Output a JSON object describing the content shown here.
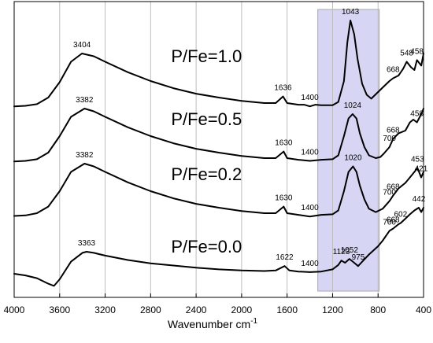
{
  "chart_data": {
    "type": "line",
    "xlabel": "Wavenumber cm",
    "xlabel_superscript": "-1",
    "xlim": [
      4000,
      400
    ],
    "x_reversed": true,
    "x_ticks": [
      4000,
      3600,
      3200,
      2800,
      2400,
      2000,
      1600,
      1200,
      800,
      400
    ],
    "y_axis_shown": false,
    "grid": "vertical",
    "highlight_band": {
      "x_from": 1330,
      "x_to": 790,
      "color": "#c8c8f0"
    },
    "series": [
      {
        "name": "P/Fe=1.0",
        "color": "#000000",
        "offset": 3,
        "points": [
          [
            4000,
            0.04
          ],
          [
            3900,
            0.05
          ],
          [
            3800,
            0.08
          ],
          [
            3700,
            0.2
          ],
          [
            3600,
            0.48
          ],
          [
            3500,
            0.85
          ],
          [
            3404,
            1.0
          ],
          [
            3300,
            0.95
          ],
          [
            3200,
            0.85
          ],
          [
            3000,
            0.66
          ],
          [
            2800,
            0.5
          ],
          [
            2600,
            0.37
          ],
          [
            2400,
            0.27
          ],
          [
            2200,
            0.2
          ],
          [
            2000,
            0.14
          ],
          [
            1800,
            0.1
          ],
          [
            1700,
            0.1
          ],
          [
            1636,
            0.22
          ],
          [
            1600,
            0.1
          ],
          [
            1500,
            0.07
          ],
          [
            1450,
            0.07
          ],
          [
            1400,
            0.04
          ],
          [
            1350,
            0.07
          ],
          [
            1300,
            0.06
          ],
          [
            1200,
            0.06
          ],
          [
            1150,
            0.12
          ],
          [
            1100,
            0.5
          ],
          [
            1070,
            1.2
          ],
          [
            1043,
            1.6
          ],
          [
            1010,
            1.35
          ],
          [
            980,
            0.9
          ],
          [
            940,
            0.45
          ],
          [
            900,
            0.25
          ],
          [
            860,
            0.18
          ],
          [
            800,
            0.3
          ],
          [
            750,
            0.4
          ],
          [
            700,
            0.5
          ],
          [
            668,
            0.55
          ],
          [
            620,
            0.6
          ],
          [
            580,
            0.72
          ],
          [
            548,
            0.85
          ],
          [
            510,
            0.75
          ],
          [
            480,
            0.7
          ],
          [
            458,
            0.88
          ],
          [
            420,
            0.78
          ],
          [
            400,
            1.0
          ]
        ]
      },
      {
        "name": "P/Fe=0.5",
        "color": "#000000",
        "offset": 2,
        "points": [
          [
            4000,
            0.04
          ],
          [
            3900,
            0.05
          ],
          [
            3800,
            0.08
          ],
          [
            3700,
            0.2
          ],
          [
            3600,
            0.5
          ],
          [
            3500,
            0.85
          ],
          [
            3382,
            1.0
          ],
          [
            3300,
            0.95
          ],
          [
            3200,
            0.85
          ],
          [
            3000,
            0.66
          ],
          [
            2800,
            0.5
          ],
          [
            2600,
            0.37
          ],
          [
            2400,
            0.27
          ],
          [
            2200,
            0.2
          ],
          [
            2000,
            0.14
          ],
          [
            1800,
            0.1
          ],
          [
            1700,
            0.1
          ],
          [
            1630,
            0.22
          ],
          [
            1600,
            0.1
          ],
          [
            1500,
            0.07
          ],
          [
            1400,
            0.05
          ],
          [
            1300,
            0.07
          ],
          [
            1200,
            0.08
          ],
          [
            1150,
            0.15
          ],
          [
            1100,
            0.5
          ],
          [
            1060,
            0.82
          ],
          [
            1024,
            0.9
          ],
          [
            990,
            0.82
          ],
          [
            960,
            0.55
          ],
          [
            920,
            0.3
          ],
          [
            880,
            0.15
          ],
          [
            820,
            0.1
          ],
          [
            780,
            0.12
          ],
          [
            750,
            0.18
          ],
          [
            700,
            0.3
          ],
          [
            668,
            0.45
          ],
          [
            620,
            0.55
          ],
          [
            560,
            0.6
          ],
          [
            520,
            0.75
          ],
          [
            490,
            0.8
          ],
          [
            458,
            0.75
          ],
          [
            420,
            0.9
          ],
          [
            400,
            1.0
          ]
        ]
      },
      {
        "name": "P/Fe=0.2",
        "color": "#000000",
        "offset": 1,
        "points": [
          [
            4000,
            0.05
          ],
          [
            3900,
            0.06
          ],
          [
            3800,
            0.1
          ],
          [
            3700,
            0.22
          ],
          [
            3600,
            0.5
          ],
          [
            3500,
            0.85
          ],
          [
            3382,
            1.0
          ],
          [
            3300,
            0.95
          ],
          [
            3200,
            0.85
          ],
          [
            3000,
            0.66
          ],
          [
            2800,
            0.5
          ],
          [
            2600,
            0.37
          ],
          [
            2400,
            0.27
          ],
          [
            2200,
            0.2
          ],
          [
            2000,
            0.14
          ],
          [
            1800,
            0.1
          ],
          [
            1700,
            0.1
          ],
          [
            1630,
            0.22
          ],
          [
            1600,
            0.1
          ],
          [
            1500,
            0.07
          ],
          [
            1400,
            0.04
          ],
          [
            1300,
            0.07
          ],
          [
            1200,
            0.08
          ],
          [
            1150,
            0.15
          ],
          [
            1100,
            0.5
          ],
          [
            1060,
            0.85
          ],
          [
            1020,
            0.95
          ],
          [
            990,
            0.85
          ],
          [
            960,
            0.6
          ],
          [
            920,
            0.35
          ],
          [
            880,
            0.18
          ],
          [
            820,
            0.12
          ],
          [
            760,
            0.18
          ],
          [
            700,
            0.32
          ],
          [
            668,
            0.42
          ],
          [
            620,
            0.55
          ],
          [
            560,
            0.65
          ],
          [
            520,
            0.75
          ],
          [
            480,
            0.85
          ],
          [
            453,
            0.92
          ],
          [
            421,
            0.75
          ],
          [
            400,
            0.85
          ]
        ]
      },
      {
        "name": "P/Fe=0.0",
        "color": "#000000",
        "offset": 0,
        "points": [
          [
            4000,
            0.0
          ],
          [
            3900,
            -0.03
          ],
          [
            3800,
            -0.08
          ],
          [
            3700,
            -0.18
          ],
          [
            3650,
            -0.22
          ],
          [
            3600,
            -0.1
          ],
          [
            3500,
            0.22
          ],
          [
            3400,
            0.38
          ],
          [
            3363,
            0.4
          ],
          [
            3300,
            0.38
          ],
          [
            3200,
            0.33
          ],
          [
            3000,
            0.25
          ],
          [
            2800,
            0.19
          ],
          [
            2600,
            0.15
          ],
          [
            2400,
            0.11
          ],
          [
            2200,
            0.08
          ],
          [
            2000,
            0.06
          ],
          [
            1800,
            0.05
          ],
          [
            1700,
            0.06
          ],
          [
            1622,
            0.14
          ],
          [
            1580,
            0.06
          ],
          [
            1500,
            0.04
          ],
          [
            1400,
            0.03
          ],
          [
            1300,
            0.04
          ],
          [
            1200,
            0.08
          ],
          [
            1150,
            0.16
          ],
          [
            1123,
            0.24
          ],
          [
            1090,
            0.2
          ],
          [
            1052,
            0.27
          ],
          [
            1010,
            0.2
          ],
          [
            975,
            0.14
          ],
          [
            930,
            0.24
          ],
          [
            880,
            0.35
          ],
          [
            800,
            0.5
          ],
          [
            760,
            0.6
          ],
          [
            700,
            0.78
          ],
          [
            668,
            0.82
          ],
          [
            620,
            0.9
          ],
          [
            602,
            0.92
          ],
          [
            560,
            1.0
          ],
          [
            520,
            1.08
          ],
          [
            480,
            1.15
          ],
          [
            442,
            1.2
          ],
          [
            420,
            1.12
          ],
          [
            400,
            1.2
          ]
        ]
      }
    ],
    "peak_labels": [
      {
        "series": 0,
        "x": 3404,
        "text": "3404"
      },
      {
        "series": 0,
        "x": 1636,
        "text": "1636"
      },
      {
        "series": 0,
        "x": 1400,
        "text": "1400"
      },
      {
        "series": 0,
        "x": 1043,
        "text": "1043"
      },
      {
        "series": 0,
        "x": 668,
        "text": "668"
      },
      {
        "series": 0,
        "x": 548,
        "text": "548"
      },
      {
        "series": 0,
        "x": 458,
        "text": "458"
      },
      {
        "series": 1,
        "x": 3382,
        "text": "3382"
      },
      {
        "series": 1,
        "x": 1630,
        "text": "1630"
      },
      {
        "series": 1,
        "x": 1400,
        "text": "1400"
      },
      {
        "series": 1,
        "x": 1024,
        "text": "1024"
      },
      {
        "series": 1,
        "x": 700,
        "text": "700"
      },
      {
        "series": 1,
        "x": 668,
        "text": "668"
      },
      {
        "series": 1,
        "x": 458,
        "text": "458"
      },
      {
        "series": 2,
        "x": 3382,
        "text": "3382"
      },
      {
        "series": 2,
        "x": 1630,
        "text": "1630"
      },
      {
        "series": 2,
        "x": 1400,
        "text": "1400"
      },
      {
        "series": 2,
        "x": 1020,
        "text": "1020"
      },
      {
        "series": 2,
        "x": 700,
        "text": "700"
      },
      {
        "series": 2,
        "x": 668,
        "text": "668"
      },
      {
        "series": 2,
        "x": 453,
        "text": "453"
      },
      {
        "series": 2,
        "x": 421,
        "text": "421"
      },
      {
        "series": 3,
        "x": 3363,
        "text": "3363"
      },
      {
        "series": 3,
        "x": 1622,
        "text": "1622"
      },
      {
        "series": 3,
        "x": 1400,
        "text": "1400"
      },
      {
        "series": 3,
        "x": 1123,
        "text": "1123"
      },
      {
        "series": 3,
        "x": 1052,
        "text": "1052"
      },
      {
        "series": 3,
        "x": 975,
        "text": "975"
      },
      {
        "series": 3,
        "x": 700,
        "text": "700"
      },
      {
        "series": 3,
        "x": 668,
        "text": "668"
      },
      {
        "series": 3,
        "x": 602,
        "text": "602"
      },
      {
        "series": 3,
        "x": 442,
        "text": "442"
      }
    ]
  }
}
